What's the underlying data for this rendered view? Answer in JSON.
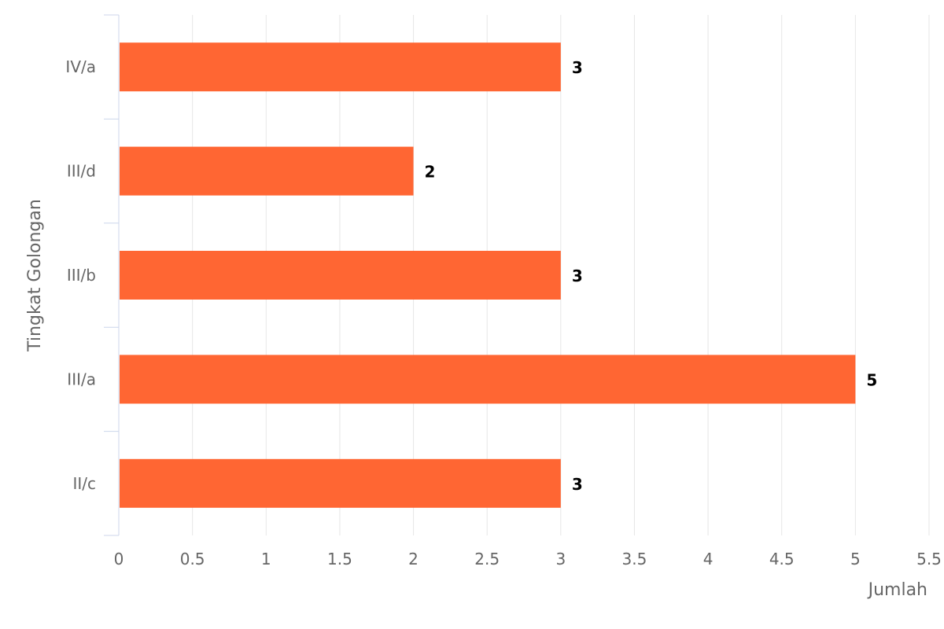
{
  "chart_data": {
    "type": "bar",
    "orientation": "horizontal",
    "categories": [
      "IV/a",
      "III/d",
      "III/b",
      "III/a",
      "II/c"
    ],
    "values": [
      3,
      2,
      3,
      5,
      3
    ],
    "xlabel": "Jumlah",
    "ylabel": "Tingkat Golongan",
    "xlim": [
      0,
      5.5
    ],
    "xticks": [
      "0",
      "0.5",
      "1",
      "1.5",
      "2",
      "2.5",
      "3",
      "3.5",
      "4",
      "4.5",
      "5",
      "5.5"
    ],
    "grid": true,
    "legend": "none",
    "data_labels": true,
    "colors": {
      "bar": "#ff6633",
      "grid": "#e6e6e6",
      "axis": "#ccd6eb",
      "tick_label": "#666666",
      "data_label": "#000000"
    }
  }
}
